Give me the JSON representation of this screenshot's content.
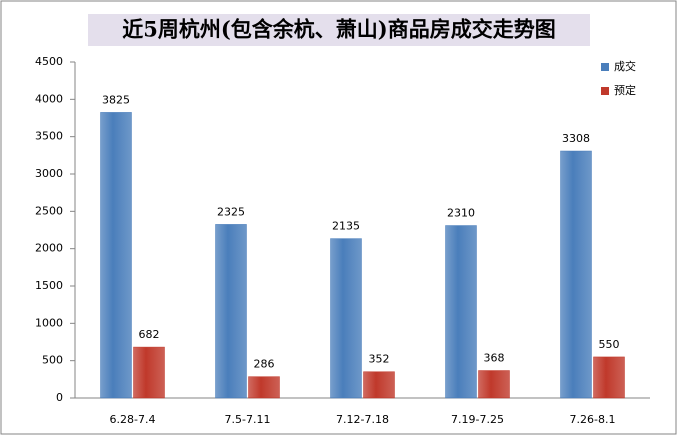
{
  "chart_data": {
    "type": "bar",
    "title": "近5周杭州(包含余杭、萧山)商品房成交走势图",
    "categories": [
      "6.28-7.4",
      "7.5-7.11",
      "7.12-7.18",
      "7.19-7.25",
      "7.26-8.1"
    ],
    "series": [
      {
        "name": "成交",
        "color": "#4a7ebb",
        "values": [
          3825,
          2325,
          2135,
          2310,
          3308
        ]
      },
      {
        "name": "预定",
        "color": "#c0392b",
        "values": [
          682,
          286,
          352,
          368,
          550
        ]
      }
    ],
    "ylim": [
      0,
      4500
    ],
    "yticks": [
      0,
      500,
      1000,
      1500,
      2000,
      2500,
      3000,
      3500,
      4000,
      4500
    ],
    "grid": false,
    "legend": "top-right"
  }
}
